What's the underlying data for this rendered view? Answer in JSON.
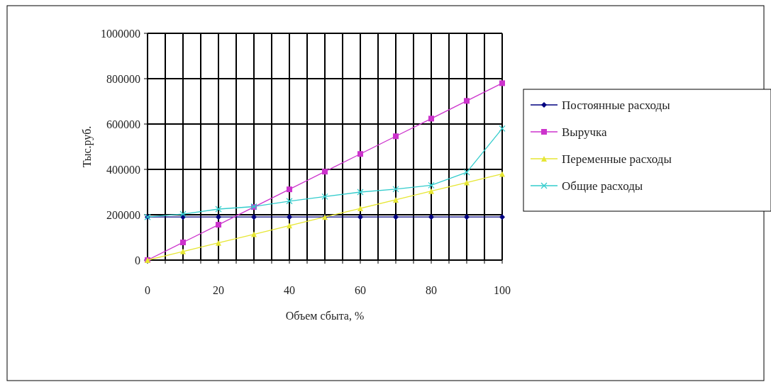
{
  "chart_data": {
    "type": "line",
    "xlabel": "Объем сбыта, %",
    "ylabel": "Тыс.руб.",
    "x": [
      0,
      10,
      20,
      30,
      40,
      50,
      60,
      70,
      80,
      90,
      100
    ],
    "series": [
      {
        "name": "Постоянные расходы",
        "color": "#000080",
        "marker": "diamond",
        "values": [
          190000,
          190000,
          190000,
          190000,
          190000,
          190000,
          190000,
          190000,
          190000,
          190000,
          190000
        ]
      },
      {
        "name": "Выручка",
        "color": "#cc33cc",
        "marker": "square",
        "values": [
          0,
          78000,
          156000,
          234000,
          312000,
          390000,
          468000,
          546000,
          624000,
          702000,
          780000
        ]
      },
      {
        "name": "Переменные расходы",
        "color": "#e6e633",
        "marker": "triangle",
        "values": [
          0,
          38000,
          76000,
          114000,
          152000,
          190000,
          228000,
          266000,
          304000,
          342000,
          380000
        ]
      },
      {
        "name": "Общие расходы",
        "color": "#33cccc",
        "marker": "cross",
        "values": [
          190000,
          203000,
          225000,
          236000,
          260000,
          280000,
          300000,
          313000,
          330000,
          387000,
          580000
        ]
      }
    ],
    "xlim": [
      0,
      100
    ],
    "xticks": [
      0,
      {
        "value": 5,
        "label": null
      },
      {
        "value": 10,
        "label": null
      },
      {
        "value": 15,
        "label": null
      },
      20,
      {
        "value": 25,
        "label": null
      },
      {
        "value": 30,
        "label": null
      },
      {
        "value": 35,
        "label": null
      },
      40,
      {
        "value": 45,
        "label": null
      },
      {
        "value": 50,
        "label": null
      },
      {
        "value": 55,
        "label": null
      },
      60,
      {
        "value": 65,
        "label": null
      },
      {
        "value": 70,
        "label": null
      },
      {
        "value": 75,
        "label": null
      },
      80,
      {
        "value": 85,
        "label": null
      },
      {
        "value": 90,
        "label": null
      },
      {
        "value": 95,
        "label": null
      },
      100
    ],
    "ylim": [
      0,
      1000000
    ],
    "yticks": [
      0,
      200000,
      400000,
      600000,
      800000,
      1000000
    ],
    "grid": true,
    "legend": "right",
    "line_style": "solid"
  }
}
